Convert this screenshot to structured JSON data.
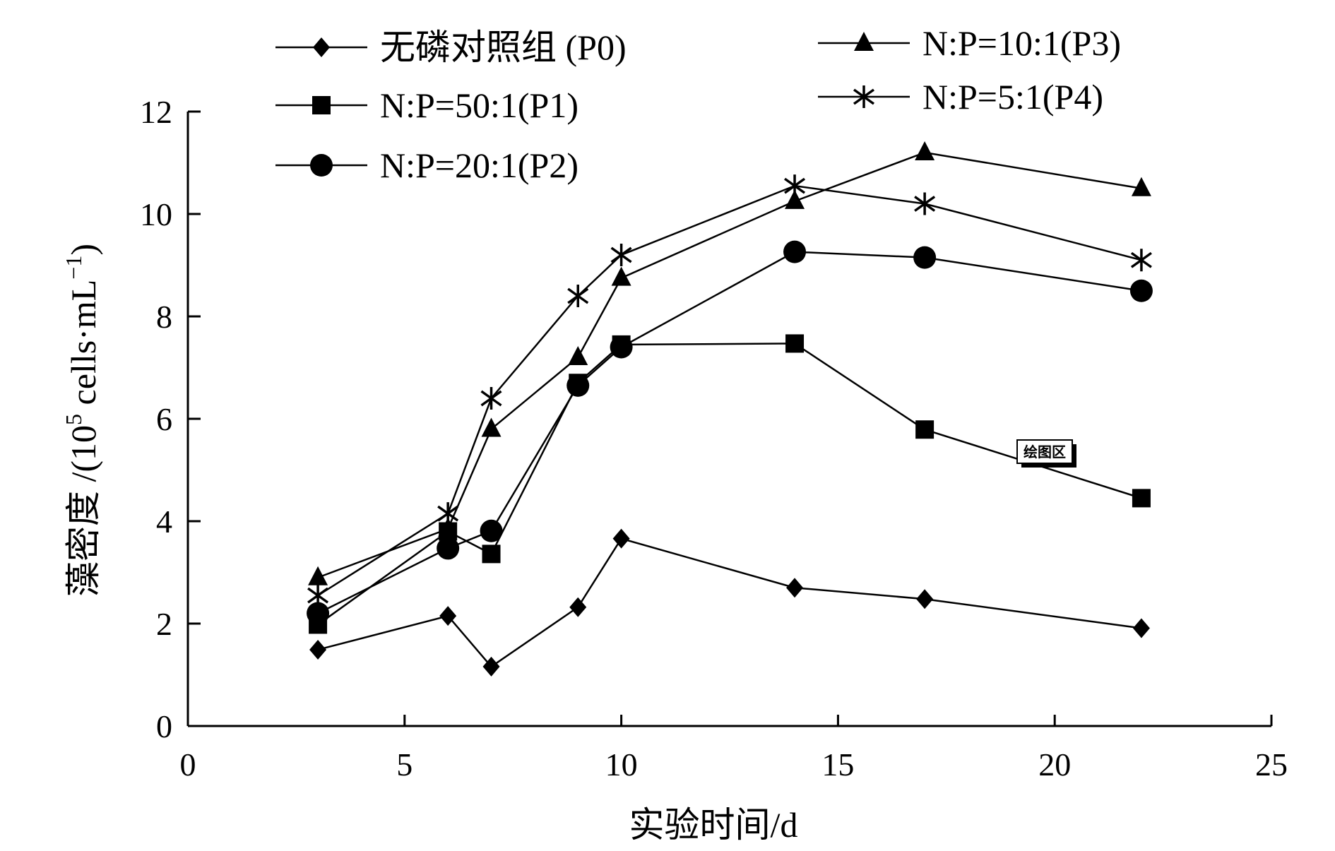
{
  "chart_data": {
    "type": "line",
    "title": "",
    "xlabel": "实验时间/d",
    "ylabel": {
      "main": "藻密度 /(10",
      "sup1": "5",
      "mid": " cells·mL",
      "sup2": "−1",
      "end": ")"
    },
    "xlim": [
      0,
      25
    ],
    "ylim": [
      0,
      12
    ],
    "xticks": [
      0,
      5,
      10,
      15,
      20,
      25
    ],
    "yticks": [
      0,
      2,
      4,
      6,
      8,
      10,
      12
    ],
    "grid": false,
    "legend_placement": "top",
    "x": [
      3,
      6,
      7,
      9,
      10,
      14,
      17,
      22
    ],
    "series": [
      {
        "name": "无磷对照组 (P0)",
        "marker": "diamond",
        "values": [
          1.49,
          2.15,
          1.16,
          2.32,
          3.66,
          2.7,
          2.48,
          1.91
        ]
      },
      {
        "name": "N:P=50:1(P1)",
        "marker": "square",
        "values": [
          1.98,
          3.8,
          3.36,
          6.7,
          7.45,
          7.47,
          5.79,
          4.45
        ]
      },
      {
        "name": "N:P=20:1(P2)",
        "marker": "circle",
        "values": [
          2.2,
          3.47,
          3.81,
          6.65,
          7.4,
          9.26,
          9.15,
          8.5
        ]
      },
      {
        "name": "N:P=10:1(P3)",
        "marker": "triangle",
        "values": [
          2.9,
          3.85,
          5.8,
          7.2,
          8.75,
          10.25,
          11.2,
          10.5
        ]
      },
      {
        "name": "N:P=5:1(P4)",
        "marker": "asterisk",
        "values": [
          2.55,
          4.15,
          6.4,
          8.4,
          9.2,
          10.55,
          10.2,
          9.1
        ]
      }
    ],
    "annotations": [
      {
        "text": "绘图区",
        "near_x": 19.8,
        "near_y": 5.3
      }
    ]
  }
}
